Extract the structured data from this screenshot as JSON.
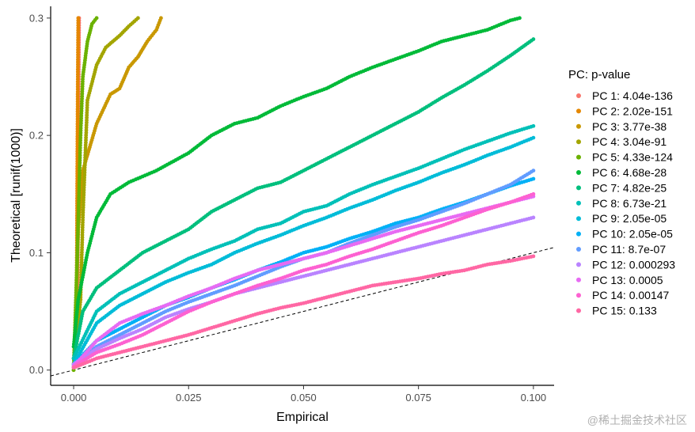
{
  "chart_data": {
    "type": "scatter",
    "xlabel": "Empirical",
    "ylabel": "Theoretical [runif(1000)]",
    "xlim": [
      -0.005,
      0.1045
    ],
    "ylim": [
      -0.013,
      0.31
    ],
    "x_ticks": [
      "0.000",
      "0.025",
      "0.050",
      "0.075",
      "0.100"
    ],
    "x_tick_values": [
      0,
      0.025,
      0.05,
      0.075,
      0.1
    ],
    "y_ticks": [
      "0.0",
      "0.1",
      "0.2",
      "0.3"
    ],
    "y_tick_values": [
      0,
      0.1,
      0.2,
      0.3
    ],
    "grid": false,
    "reference_line": {
      "style": "dashed",
      "slope": 1,
      "intercept": 0
    },
    "legend": {
      "title": "PC: p-value",
      "position": "right"
    },
    "series": [
      {
        "name": "PC 1: 4.04e-136",
        "color": "#F8766D",
        "points": [
          [
            0.0008,
            0.03
          ],
          [
            0.0009,
            0.1
          ],
          [
            0.001,
            0.18
          ],
          [
            0.0011,
            0.25
          ],
          [
            0.0012,
            0.3
          ]
        ]
      },
      {
        "name": "PC 2: 2.02e-151",
        "color": "#E58700",
        "points": [
          [
            0.0005,
            0.03
          ],
          [
            0.0007,
            0.1
          ],
          [
            0.0008,
            0.18
          ],
          [
            0.0009,
            0.25
          ],
          [
            0.001,
            0.3
          ]
        ]
      },
      {
        "name": "PC 3: 3.77e-38",
        "color": "#C99800",
        "points": [
          [
            0.0,
            0.0
          ],
          [
            0.0005,
            0.05
          ],
          [
            0.001,
            0.12
          ],
          [
            0.002,
            0.17
          ],
          [
            0.005,
            0.21
          ],
          [
            0.008,
            0.235
          ],
          [
            0.01,
            0.24
          ],
          [
            0.012,
            0.258
          ],
          [
            0.014,
            0.267
          ],
          [
            0.016,
            0.28
          ],
          [
            0.018,
            0.29
          ],
          [
            0.019,
            0.3
          ]
        ]
      },
      {
        "name": "PC 4: 3.04e-91",
        "color": "#A3A500",
        "points": [
          [
            0.0,
            0.0
          ],
          [
            0.0015,
            0.06
          ],
          [
            0.002,
            0.13
          ],
          [
            0.003,
            0.23
          ],
          [
            0.005,
            0.26
          ],
          [
            0.007,
            0.275
          ],
          [
            0.01,
            0.285
          ],
          [
            0.012,
            0.293
          ],
          [
            0.014,
            0.3
          ]
        ]
      },
      {
        "name": "PC 5: 4.33e-124",
        "color": "#6BB100",
        "points": [
          [
            0.0,
            0.0
          ],
          [
            0.0008,
            0.1
          ],
          [
            0.0015,
            0.2
          ],
          [
            0.002,
            0.25
          ],
          [
            0.003,
            0.28
          ],
          [
            0.004,
            0.295
          ],
          [
            0.005,
            0.3
          ]
        ]
      },
      {
        "name": "PC 6: 4.68e-28",
        "color": "#00BA38",
        "points": [
          [
            0.0,
            0.02
          ],
          [
            0.001,
            0.06
          ],
          [
            0.003,
            0.1
          ],
          [
            0.005,
            0.13
          ],
          [
            0.008,
            0.15
          ],
          [
            0.012,
            0.16
          ],
          [
            0.018,
            0.17
          ],
          [
            0.025,
            0.185
          ],
          [
            0.03,
            0.2
          ],
          [
            0.035,
            0.21
          ],
          [
            0.04,
            0.215
          ],
          [
            0.045,
            0.225
          ],
          [
            0.05,
            0.233
          ],
          [
            0.055,
            0.24
          ],
          [
            0.06,
            0.25
          ],
          [
            0.065,
            0.258
          ],
          [
            0.07,
            0.265
          ],
          [
            0.075,
            0.272
          ],
          [
            0.08,
            0.28
          ],
          [
            0.085,
            0.285
          ],
          [
            0.09,
            0.29
          ],
          [
            0.095,
            0.298
          ],
          [
            0.097,
            0.3
          ]
        ]
      },
      {
        "name": "PC 7: 4.82e-25",
        "color": "#00BF7D",
        "points": [
          [
            0.0,
            0.01
          ],
          [
            0.002,
            0.05
          ],
          [
            0.005,
            0.07
          ],
          [
            0.01,
            0.085
          ],
          [
            0.015,
            0.1
          ],
          [
            0.02,
            0.11
          ],
          [
            0.025,
            0.12
          ],
          [
            0.03,
            0.135
          ],
          [
            0.035,
            0.145
          ],
          [
            0.04,
            0.155
          ],
          [
            0.045,
            0.16
          ],
          [
            0.05,
            0.17
          ],
          [
            0.055,
            0.18
          ],
          [
            0.06,
            0.19
          ],
          [
            0.065,
            0.2
          ],
          [
            0.07,
            0.21
          ],
          [
            0.075,
            0.22
          ],
          [
            0.08,
            0.232
          ],
          [
            0.085,
            0.243
          ],
          [
            0.09,
            0.255
          ],
          [
            0.095,
            0.268
          ],
          [
            0.1,
            0.282
          ]
        ]
      },
      {
        "name": "PC 8: 6.73e-21",
        "color": "#00C0B8",
        "points": [
          [
            0.0,
            0.01
          ],
          [
            0.005,
            0.05
          ],
          [
            0.01,
            0.065
          ],
          [
            0.015,
            0.075
          ],
          [
            0.02,
            0.085
          ],
          [
            0.025,
            0.095
          ],
          [
            0.03,
            0.103
          ],
          [
            0.035,
            0.11
          ],
          [
            0.04,
            0.12
          ],
          [
            0.045,
            0.125
          ],
          [
            0.05,
            0.135
          ],
          [
            0.055,
            0.14
          ],
          [
            0.06,
            0.15
          ],
          [
            0.065,
            0.158
          ],
          [
            0.07,
            0.165
          ],
          [
            0.075,
            0.172
          ],
          [
            0.08,
            0.18
          ],
          [
            0.085,
            0.188
          ],
          [
            0.09,
            0.195
          ],
          [
            0.095,
            0.202
          ],
          [
            0.1,
            0.208
          ]
        ]
      },
      {
        "name": "PC 9: 2.05e-05",
        "color": "#00BCD8",
        "points": [
          [
            0.0,
            0.005
          ],
          [
            0.005,
            0.04
          ],
          [
            0.01,
            0.055
          ],
          [
            0.015,
            0.065
          ],
          [
            0.02,
            0.075
          ],
          [
            0.025,
            0.083
          ],
          [
            0.03,
            0.09
          ],
          [
            0.035,
            0.1
          ],
          [
            0.04,
            0.108
          ],
          [
            0.045,
            0.115
          ],
          [
            0.05,
            0.123
          ],
          [
            0.055,
            0.13
          ],
          [
            0.06,
            0.138
          ],
          [
            0.065,
            0.145
          ],
          [
            0.07,
            0.153
          ],
          [
            0.075,
            0.16
          ],
          [
            0.08,
            0.168
          ],
          [
            0.085,
            0.175
          ],
          [
            0.09,
            0.183
          ],
          [
            0.095,
            0.19
          ],
          [
            0.1,
            0.198
          ]
        ]
      },
      {
        "name": "PC 10: 2.05e-05",
        "color": "#00B0F6",
        "points": [
          [
            0.0,
            0.005
          ],
          [
            0.005,
            0.025
          ],
          [
            0.01,
            0.035
          ],
          [
            0.015,
            0.045
          ],
          [
            0.02,
            0.055
          ],
          [
            0.025,
            0.062
          ],
          [
            0.03,
            0.07
          ],
          [
            0.035,
            0.077
          ],
          [
            0.04,
            0.085
          ],
          [
            0.045,
            0.092
          ],
          [
            0.05,
            0.1
          ],
          [
            0.055,
            0.105
          ],
          [
            0.06,
            0.112
          ],
          [
            0.065,
            0.118
          ],
          [
            0.07,
            0.125
          ],
          [
            0.075,
            0.13
          ],
          [
            0.08,
            0.137
          ],
          [
            0.085,
            0.143
          ],
          [
            0.09,
            0.15
          ],
          [
            0.095,
            0.157
          ],
          [
            0.1,
            0.163
          ]
        ]
      },
      {
        "name": "PC 11: 8.7e-07",
        "color": "#619CFF",
        "points": [
          [
            0.0,
            0.005
          ],
          [
            0.005,
            0.02
          ],
          [
            0.01,
            0.03
          ],
          [
            0.015,
            0.04
          ],
          [
            0.02,
            0.05
          ],
          [
            0.025,
            0.058
          ],
          [
            0.03,
            0.065
          ],
          [
            0.035,
            0.072
          ],
          [
            0.04,
            0.08
          ],
          [
            0.045,
            0.088
          ],
          [
            0.05,
            0.095
          ],
          [
            0.055,
            0.1
          ],
          [
            0.06,
            0.108
          ],
          [
            0.065,
            0.115
          ],
          [
            0.07,
            0.122
          ],
          [
            0.075,
            0.128
          ],
          [
            0.08,
            0.135
          ],
          [
            0.085,
            0.142
          ],
          [
            0.09,
            0.15
          ],
          [
            0.095,
            0.158
          ],
          [
            0.1,
            0.17
          ]
        ]
      },
      {
        "name": "PC 12: 0.000293",
        "color": "#B983FF",
        "points": [
          [
            0.0,
            0.005
          ],
          [
            0.005,
            0.018
          ],
          [
            0.01,
            0.027
          ],
          [
            0.015,
            0.035
          ],
          [
            0.02,
            0.045
          ],
          [
            0.025,
            0.052
          ],
          [
            0.03,
            0.058
          ],
          [
            0.035,
            0.065
          ],
          [
            0.04,
            0.07
          ],
          [
            0.045,
            0.075
          ],
          [
            0.05,
            0.08
          ],
          [
            0.055,
            0.085
          ],
          [
            0.06,
            0.09
          ],
          [
            0.065,
            0.095
          ],
          [
            0.07,
            0.1
          ],
          [
            0.075,
            0.105
          ],
          [
            0.08,
            0.11
          ],
          [
            0.085,
            0.115
          ],
          [
            0.09,
            0.12
          ],
          [
            0.095,
            0.125
          ],
          [
            0.1,
            0.13
          ]
        ]
      },
      {
        "name": "PC 13: 0.0005",
        "color": "#E76BF3",
        "points": [
          [
            0.0,
            0.003
          ],
          [
            0.005,
            0.025
          ],
          [
            0.01,
            0.04
          ],
          [
            0.015,
            0.048
          ],
          [
            0.02,
            0.055
          ],
          [
            0.025,
            0.063
          ],
          [
            0.03,
            0.07
          ],
          [
            0.035,
            0.078
          ],
          [
            0.04,
            0.085
          ],
          [
            0.045,
            0.09
          ],
          [
            0.05,
            0.095
          ],
          [
            0.055,
            0.1
          ],
          [
            0.06,
            0.106
          ],
          [
            0.065,
            0.112
          ],
          [
            0.07,
            0.118
          ],
          [
            0.075,
            0.123
          ],
          [
            0.08,
            0.128
          ],
          [
            0.085,
            0.133
          ],
          [
            0.09,
            0.138
          ],
          [
            0.095,
            0.143
          ],
          [
            0.1,
            0.148
          ]
        ]
      },
      {
        "name": "PC 14: 0.00147",
        "color": "#FD61D1",
        "points": [
          [
            0.0,
            0.003
          ],
          [
            0.005,
            0.015
          ],
          [
            0.01,
            0.022
          ],
          [
            0.015,
            0.03
          ],
          [
            0.02,
            0.04
          ],
          [
            0.025,
            0.05
          ],
          [
            0.03,
            0.058
          ],
          [
            0.035,
            0.065
          ],
          [
            0.04,
            0.072
          ],
          [
            0.045,
            0.078
          ],
          [
            0.05,
            0.085
          ],
          [
            0.055,
            0.09
          ],
          [
            0.06,
            0.097
          ],
          [
            0.065,
            0.103
          ],
          [
            0.07,
            0.11
          ],
          [
            0.075,
            0.117
          ],
          [
            0.08,
            0.123
          ],
          [
            0.085,
            0.13
          ],
          [
            0.09,
            0.137
          ],
          [
            0.095,
            0.143
          ],
          [
            0.1,
            0.15
          ]
        ]
      },
      {
        "name": "PC 15: 0.133",
        "color": "#FF67A4",
        "points": [
          [
            0.0,
            0.002
          ],
          [
            0.005,
            0.01
          ],
          [
            0.01,
            0.015
          ],
          [
            0.015,
            0.02
          ],
          [
            0.02,
            0.025
          ],
          [
            0.025,
            0.03
          ],
          [
            0.03,
            0.036
          ],
          [
            0.035,
            0.042
          ],
          [
            0.04,
            0.048
          ],
          [
            0.045,
            0.053
          ],
          [
            0.05,
            0.057
          ],
          [
            0.055,
            0.062
          ],
          [
            0.06,
            0.067
          ],
          [
            0.065,
            0.072
          ],
          [
            0.07,
            0.075
          ],
          [
            0.075,
            0.078
          ],
          [
            0.08,
            0.082
          ],
          [
            0.085,
            0.085
          ],
          [
            0.09,
            0.09
          ],
          [
            0.095,
            0.093
          ],
          [
            0.1,
            0.097
          ]
        ]
      }
    ]
  },
  "watermark": "@稀土掘金技术社区"
}
